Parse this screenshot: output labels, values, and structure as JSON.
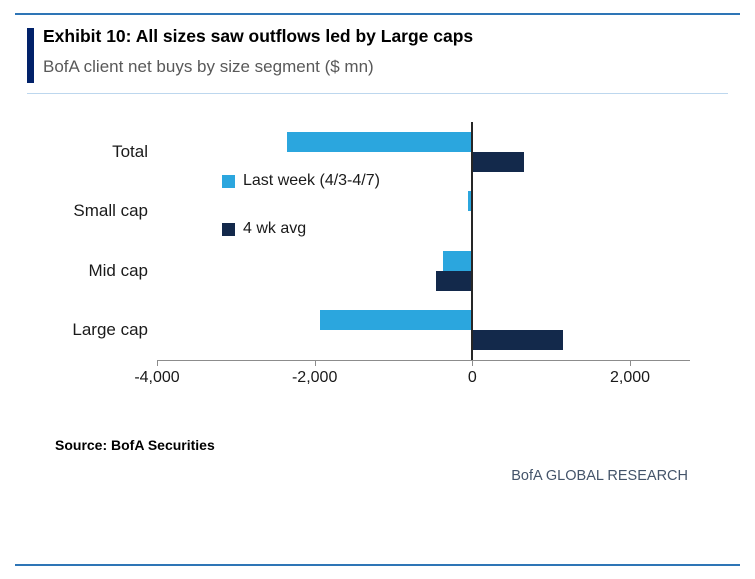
{
  "header": {
    "exhibit_title": "Exhibit 10: All sizes saw outflows led by Large caps",
    "subtitle": "BofA client net buys by size segment ($ mn)"
  },
  "chart_data": {
    "type": "bar",
    "orientation": "horizontal",
    "title": "Exhibit 10: All sizes saw outflows led by Large caps",
    "subtitle": "BofA client net buys by size segment ($ mn)",
    "categories": [
      "Total",
      "Small cap",
      "Mid cap",
      "Large cap"
    ],
    "series": [
      {
        "name": "Last week (4/3-4/7)",
        "color": "#2BA6DE",
        "values": [
          -2350,
          -60,
          -370,
          -1930
        ]
      },
      {
        "name": "4 wk avg",
        "color": "#13294B",
        "values": [
          650,
          -20,
          -460,
          1150
        ]
      }
    ],
    "xlim": [
      -4000,
      2000
    ],
    "xticks": [
      {
        "value": -4000,
        "label": "-4,000"
      },
      {
        "value": -2000,
        "label": "-2,000"
      },
      {
        "value": 0,
        "label": "0"
      },
      {
        "value": 2000,
        "label": "2,000"
      }
    ],
    "grid": false,
    "legend_position": "inside-top-left"
  },
  "footer": {
    "source": "Source: BofA Securities",
    "brand": "BofA GLOBAL RESEARCH"
  },
  "colors": {
    "last_week": "#2BA6DE",
    "four_wk_avg": "#13294B",
    "rule_blue": "#2E75B6",
    "accent_bar": "#012169",
    "subtitle_text": "#595959",
    "brand_text": "#44546A"
  }
}
